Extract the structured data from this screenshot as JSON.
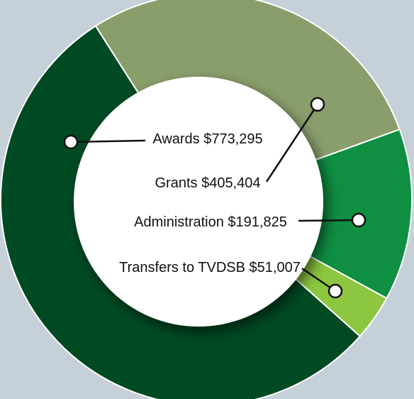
{
  "chart_data": {
    "type": "donut",
    "categories": [
      "Awards",
      "Grants",
      "Administration",
      "Transfers to TVDSB"
    ],
    "values": [
      773295,
      405404,
      191825,
      51007
    ],
    "value_labels": [
      "$773,295",
      "$405,404",
      "$191,825",
      "$51,007"
    ],
    "colors": [
      "#004a23",
      "#8a9e6c",
      "#0e8f42",
      "#8dc63f"
    ]
  }
}
